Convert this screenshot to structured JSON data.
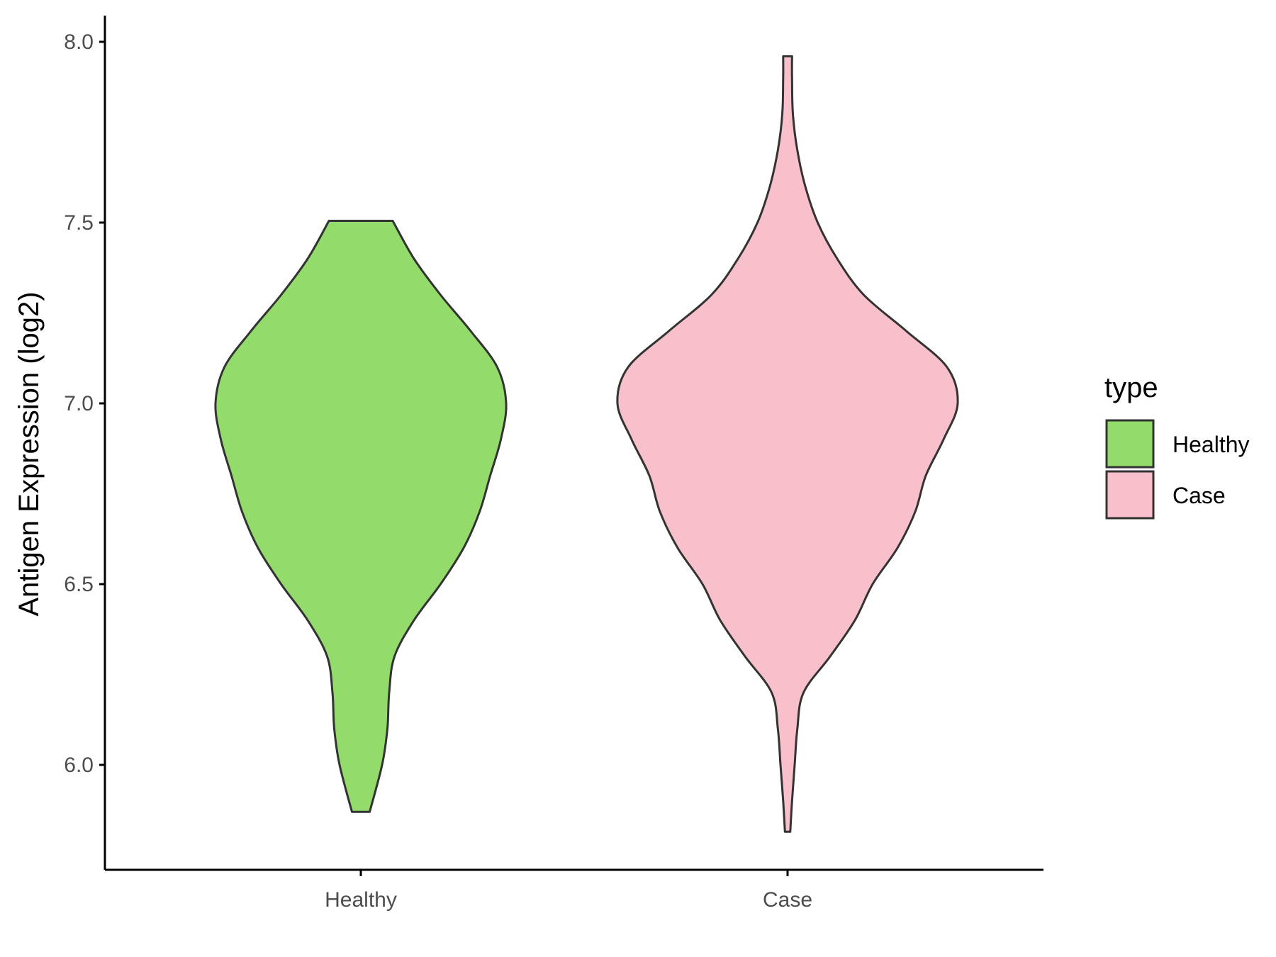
{
  "chart_data": {
    "type": "violin",
    "title": "",
    "xlabel": "",
    "ylabel": "Antigen Expression (log2)",
    "ylim": [
      5.7,
      8.07
    ],
    "yticks": [
      "6.0",
      "6.5",
      "7.0",
      "7.5",
      "8.0"
    ],
    "ytick_values": [
      6.0,
      6.5,
      7.0,
      7.5,
      8.0
    ],
    "categories": [
      "Healthy",
      "Case"
    ],
    "grid": false,
    "legend": {
      "title": "type",
      "placement": "right",
      "entries": [
        {
          "label": "Healthy",
          "color": "#93dc6b"
        },
        {
          "label": "Case",
          "color": "#f8c0cb"
        }
      ]
    },
    "outline_color": "#333333",
    "series": [
      {
        "category": "Healthy",
        "color": "#93dc6b",
        "min": 5.87,
        "max": 7.505,
        "density": [
          [
            5.87,
            0.05
          ],
          [
            6.0,
            0.12
          ],
          [
            6.1,
            0.15
          ],
          [
            6.2,
            0.16
          ],
          [
            6.3,
            0.19
          ],
          [
            6.4,
            0.3
          ],
          [
            6.5,
            0.45
          ],
          [
            6.6,
            0.58
          ],
          [
            6.7,
            0.67
          ],
          [
            6.8,
            0.73
          ],
          [
            6.9,
            0.79
          ],
          [
            7.0,
            0.82
          ],
          [
            7.1,
            0.77
          ],
          [
            7.2,
            0.62
          ],
          [
            7.3,
            0.45
          ],
          [
            7.4,
            0.3
          ],
          [
            7.505,
            0.18
          ]
        ]
      },
      {
        "category": "Case",
        "color": "#f8c0cb",
        "min": 5.815,
        "max": 7.96,
        "density": [
          [
            5.815,
            0.015
          ],
          [
            5.9,
            0.025
          ],
          [
            6.0,
            0.04
          ],
          [
            6.1,
            0.055
          ],
          [
            6.2,
            0.09
          ],
          [
            6.3,
            0.24
          ],
          [
            6.4,
            0.38
          ],
          [
            6.5,
            0.48
          ],
          [
            6.6,
            0.62
          ],
          [
            6.7,
            0.72
          ],
          [
            6.8,
            0.78
          ],
          [
            6.9,
            0.88
          ],
          [
            7.0,
            0.96
          ],
          [
            7.1,
            0.9
          ],
          [
            7.2,
            0.67
          ],
          [
            7.3,
            0.43
          ],
          [
            7.4,
            0.28
          ],
          [
            7.5,
            0.17
          ],
          [
            7.6,
            0.1
          ],
          [
            7.7,
            0.055
          ],
          [
            7.8,
            0.03
          ],
          [
            7.9,
            0.025
          ],
          [
            7.96,
            0.025
          ]
        ]
      }
    ]
  }
}
